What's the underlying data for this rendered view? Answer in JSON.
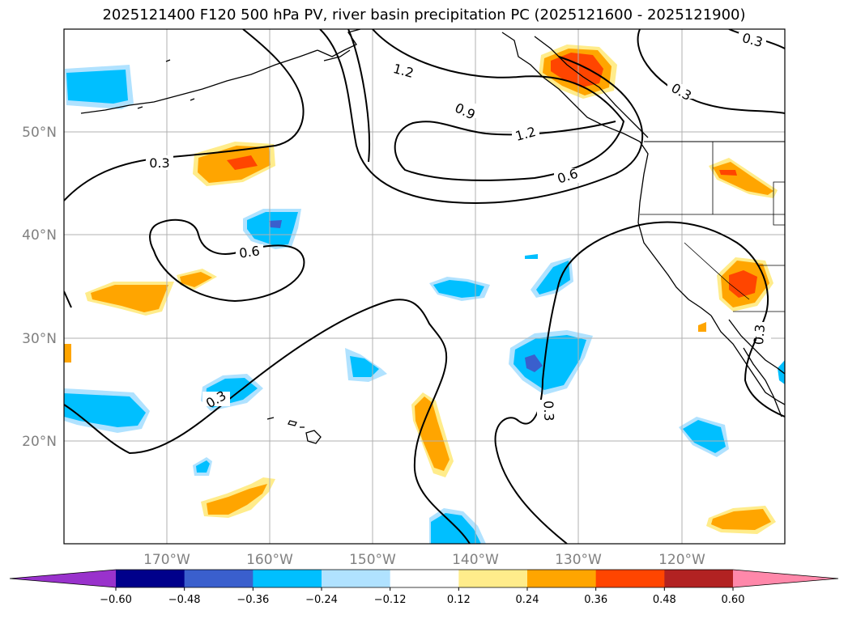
{
  "title": "2025121400 F120 500 hPa PV, river basin precipitation PC (2025121600 - 2025121900)",
  "lat_labels": [
    "50°N",
    "40°N",
    "30°N",
    "20°N"
  ],
  "lon_labels": [
    "170°W",
    "160°W",
    "150°W",
    "140°W",
    "130°W",
    "120°W"
  ],
  "contour_labels": [
    "0.3",
    "1.2",
    "0.9",
    "1.2",
    "0.6",
    "0.3",
    "0.6",
    "0.3",
    "0.3",
    "0.3",
    "0.3"
  ],
  "colorbar": {
    "ticks": [
      "−0.60",
      "−0.48",
      "−0.36",
      "−0.24",
      "−0.12",
      "0.12",
      "0.24",
      "0.36",
      "0.48",
      "0.60"
    ],
    "colors": [
      "#9932cc",
      "#00008b",
      "#3a5fcd",
      "#00bfff",
      "#b0e2ff",
      "#ffffff",
      "#ffec8b",
      "#ffa500",
      "#ff4500",
      "#b22222",
      "#ff88aa"
    ]
  },
  "colors": {
    "grid": "#b0b0b0",
    "coast": "#000000",
    "contour": "#000000"
  }
}
